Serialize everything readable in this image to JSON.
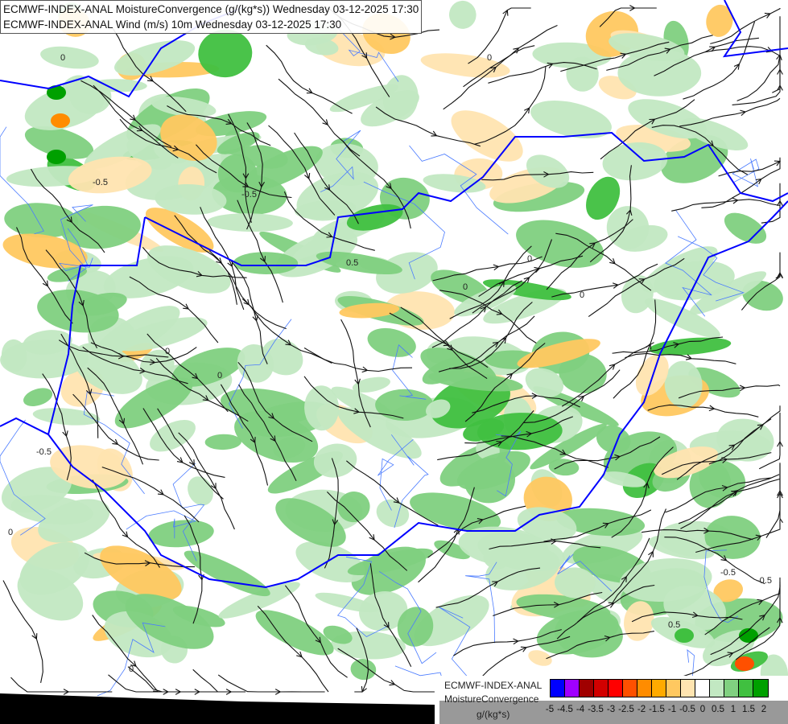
{
  "header": {
    "line1": "ECMWF-INDEX-ANAL MoistureConvergence (g/(kg*s)) Wednesday 03-12-2025 17:30",
    "line2": "ECMWF-INDEX-ANAL Wind (m/s) 10m Wednesday 03-12-2025 17:30"
  },
  "map": {
    "contour_labels": [
      "0",
      "-0.5",
      "0.5"
    ],
    "colors": {
      "border": "#0000ff",
      "river": "#4a7bff",
      "streamline": "#111111",
      "background_bottom": "#000000"
    }
  },
  "legend": {
    "model": "ECMWF-INDEX-ANAL",
    "parameter": "MoistureConvergence",
    "unit": "g/(kg*s)",
    "colors": [
      "#0000ff",
      "#a000ff",
      "#a00000",
      "#d20000",
      "#ff0000",
      "#ff5000",
      "#ff8c00",
      "#ffaa00",
      "#ffc860",
      "#ffe4b0",
      "#ffffff",
      "#c2e8c2",
      "#80d080",
      "#40c040",
      "#00a000"
    ],
    "ticks": [
      "-5",
      "-4.5",
      "-4",
      "-3.5",
      "-3",
      "-2.5",
      "-2",
      "-1.5",
      "-1",
      "-0.5",
      "0",
      "0.5",
      "1",
      "1.5",
      "2"
    ]
  }
}
